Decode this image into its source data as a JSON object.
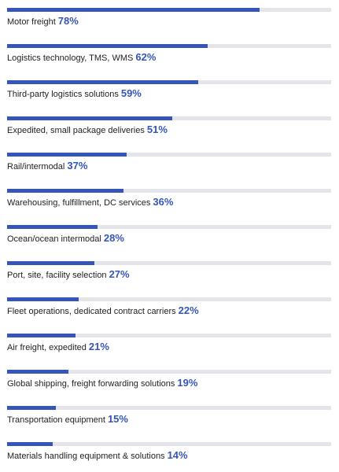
{
  "chart_data": {
    "type": "bar",
    "orientation": "horizontal",
    "categories": [
      "Motor freight",
      "Logistics technology, TMS, WMS",
      "Third-party logistics solutions",
      "Expedited, small package deliveries",
      "Rail/intermodal",
      "Warehousing, fulfillment, DC services",
      "Ocean/ocean intermodal",
      "Port, site, facility selection",
      "Fleet operations, dedicated contract carriers",
      "Air freight, expedited",
      "Global shipping, freight forwarding solutions",
      "Transportation equipment",
      "Materials handling equipment & solutions"
    ],
    "values": [
      78,
      62,
      59,
      51,
      37,
      36,
      28,
      27,
      22,
      21,
      19,
      15,
      14
    ],
    "value_labels": [
      "78%",
      "62%",
      "59%",
      "51%",
      "37%",
      "36%",
      "28%",
      "27%",
      "22%",
      "21%",
      "19%",
      "15%",
      "14%"
    ],
    "xlim": [
      0,
      100
    ],
    "grid": false,
    "bar_color": "#3556b8",
    "track_color": "#e4e5ea",
    "value_label_color": "#3556b8"
  }
}
